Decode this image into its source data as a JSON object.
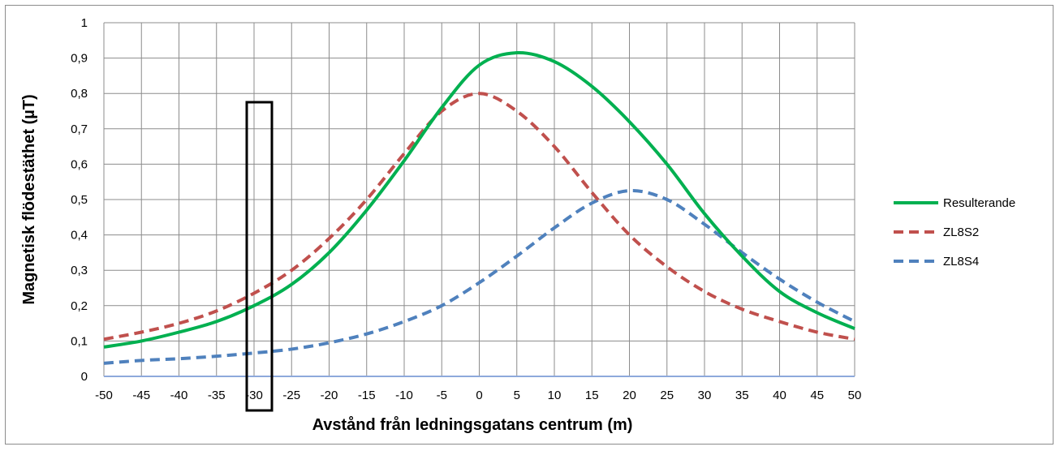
{
  "chart_data": {
    "type": "line",
    "xlabel": "Avstånd från ledningsgatans centrum (m)",
    "ylabel": "Magnetisk flödestäthet (µT)",
    "xlim": [
      -50,
      50
    ],
    "ylim": [
      0,
      1
    ],
    "x_ticks": [
      "-50",
      "-45",
      "-40",
      "-35",
      "-30",
      "-25",
      "-20",
      "-15",
      "-10",
      "-5",
      "0",
      "5",
      "10",
      "15",
      "20",
      "25",
      "30",
      "35",
      "40",
      "45",
      "50"
    ],
    "y_ticks": [
      "0",
      "0,1",
      "0,2",
      "0,3",
      "0,4",
      "0,5",
      "0,6",
      "0,7",
      "0,8",
      "0,9",
      "1"
    ],
    "grid": true,
    "legend_position": "right",
    "series": [
      {
        "name": "Resulterande",
        "color": "#00b050",
        "dash": "solid",
        "x": [
          -50,
          -45,
          -40,
          -35,
          -30,
          -25,
          -20,
          -15,
          -10,
          -5,
          0,
          5,
          10,
          15,
          20,
          25,
          30,
          35,
          40,
          45,
          50
        ],
        "y": [
          0.083,
          0.1,
          0.125,
          0.155,
          0.2,
          0.26,
          0.35,
          0.47,
          0.61,
          0.76,
          0.88,
          0.915,
          0.89,
          0.82,
          0.72,
          0.6,
          0.46,
          0.34,
          0.24,
          0.18,
          0.135
        ]
      },
      {
        "name": "ZL8S2",
        "color": "#c0504d",
        "dash": "dashed",
        "x": [
          -50,
          -45,
          -40,
          -35,
          -30,
          -25,
          -20,
          -15,
          -10,
          -5,
          0,
          5,
          10,
          15,
          20,
          25,
          30,
          35,
          40,
          45,
          50
        ],
        "y": [
          0.105,
          0.125,
          0.15,
          0.185,
          0.235,
          0.3,
          0.39,
          0.5,
          0.63,
          0.75,
          0.8,
          0.75,
          0.65,
          0.52,
          0.4,
          0.31,
          0.24,
          0.19,
          0.155,
          0.125,
          0.105
        ]
      },
      {
        "name": "ZL8S4",
        "color": "#4f81bd",
        "dash": "dashed",
        "x": [
          -50,
          -45,
          -40,
          -35,
          -30,
          -25,
          -20,
          -15,
          -10,
          -5,
          0,
          5,
          10,
          15,
          20,
          25,
          30,
          35,
          40,
          45,
          50
        ],
        "y": [
          0.037,
          0.045,
          0.05,
          0.057,
          0.066,
          0.077,
          0.095,
          0.12,
          0.155,
          0.2,
          0.265,
          0.34,
          0.42,
          0.49,
          0.525,
          0.5,
          0.43,
          0.35,
          0.275,
          0.21,
          0.155
        ]
      }
    ]
  }
}
